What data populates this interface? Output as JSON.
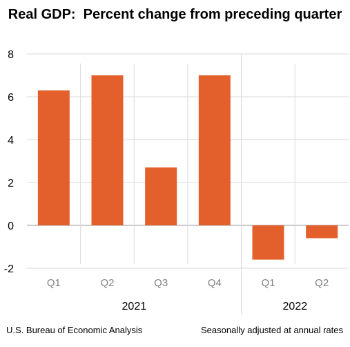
{
  "chart_data": {
    "type": "bar",
    "title": "Real GDP:  Percent change from preceding quarter",
    "categories": [
      "Q1",
      "Q2",
      "Q3",
      "Q4",
      "Q1",
      "Q2"
    ],
    "groups": [
      {
        "label": "2021",
        "categories": [
          "Q1",
          "Q2",
          "Q3",
          "Q4"
        ]
      },
      {
        "label": "2022",
        "categories": [
          "Q1",
          "Q2"
        ]
      }
    ],
    "values": [
      6.3,
      7.0,
      2.7,
      7.0,
      -1.6,
      -0.6
    ],
    "ylim": [
      -2,
      8
    ],
    "yticks": [
      -2,
      0,
      2,
      4,
      6,
      8
    ],
    "xlabel": "",
    "ylabel": "",
    "grid": true,
    "bar_color": "#e35f2c"
  },
  "footer": {
    "source": "U.S. Bureau of Economic Analysis",
    "note": "Seasonally adjusted at annual rates"
  }
}
